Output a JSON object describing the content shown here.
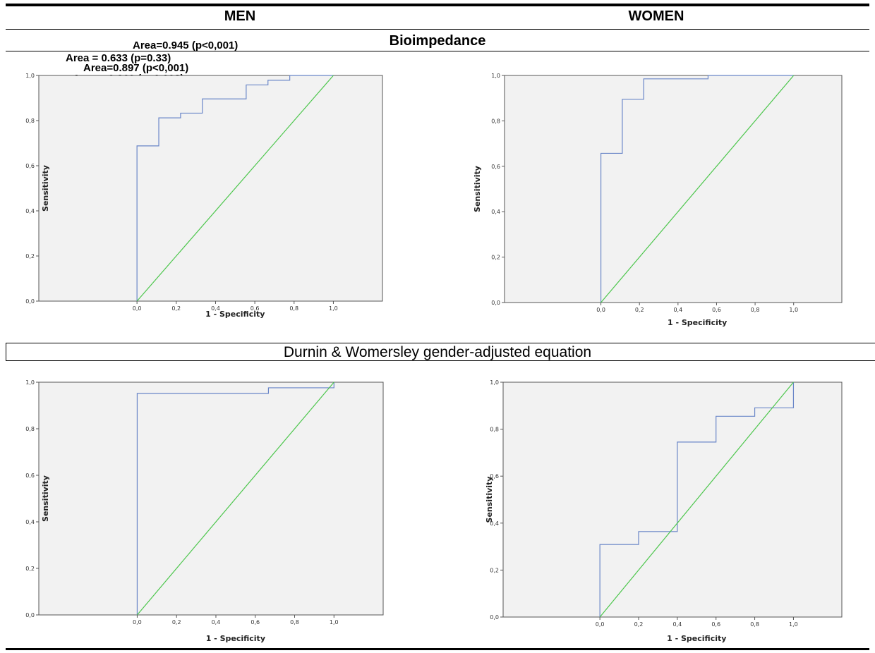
{
  "header": {
    "men": "MEN",
    "women": "WOMEN"
  },
  "sections": [
    {
      "title": "Bioimpedance",
      "bold": true
    },
    {
      "title": "Durnin & Womersley gender-adjusted equation",
      "bold": false
    }
  ],
  "area_labels": [
    "Area=0.945 (p<0,001)",
    "Area = 0.633  (p=0.33)",
    "Area=0.897 (p<0,001)",
    "Area = 0.960  (p=0.008)"
  ],
  "colors": {
    "roc": "#6a86c8",
    "reference": "#4cc64c",
    "plot_bg": "#f2f2f2",
    "axis": "#555555"
  },
  "chart_data": [
    {
      "type": "line",
      "panel": "men-bioimpedance",
      "xlabel": "1 - Specificity",
      "ylabel": "Sensitivity",
      "xlim": [
        -0.5,
        1.25
      ],
      "ylim": [
        0,
        1
      ],
      "xticks": [
        "0,0",
        "0,2",
        "0,4",
        "0,6",
        "0,8",
        "1,0"
      ],
      "yticks": [
        "0,0",
        "0,2",
        "0,4",
        "0,6",
        "0,8",
        "1,0"
      ],
      "series": [
        {
          "x": [
            0,
            0,
            0.111,
            0.111,
            0.222,
            0.222,
            0.333,
            0.333,
            0.556,
            0.556,
            0.667,
            0.667,
            0.778,
            0.778,
            1.0
          ],
          "y": [
            0,
            0.688,
            0.688,
            0.812,
            0.812,
            0.833,
            0.833,
            0.896,
            0.896,
            0.958,
            0.958,
            0.979,
            0.979,
            1.0,
            1.0
          ]
        },
        {
          "x": [
            0,
            1
          ],
          "y": [
            0,
            1
          ]
        }
      ]
    },
    {
      "type": "line",
      "panel": "women-bioimpedance",
      "xlabel": "1 - Specificity",
      "ylabel": "Sensitivity",
      "xlim": [
        -0.5,
        1.25
      ],
      "ylim": [
        0,
        1
      ],
      "xticks": [
        "0,0",
        "0,2",
        "0,4",
        "0,6",
        "0,8",
        "1,0"
      ],
      "yticks": [
        "0,0",
        "0,2",
        "0,4",
        "0,6",
        "0,8",
        "1,0"
      ],
      "series": [
        {
          "x": [
            0,
            0,
            0.111,
            0.111,
            0.222,
            0.222,
            0.556,
            0.556,
            1.0
          ],
          "y": [
            0,
            0.657,
            0.657,
            0.895,
            0.895,
            0.985,
            0.985,
            1.0,
            1.0
          ]
        },
        {
          "x": [
            0,
            1
          ],
          "y": [
            0,
            1
          ]
        }
      ]
    },
    {
      "type": "line",
      "panel": "men-durnin",
      "xlabel": "1 - Specificity",
      "ylabel": "Sensitivity",
      "xlim": [
        -0.5,
        1.25
      ],
      "ylim": [
        0,
        1
      ],
      "xticks": [
        "0,0",
        "0,2",
        "0,4",
        "0,6",
        "0,8",
        "1,0"
      ],
      "yticks": [
        "0,0",
        "0,2",
        "0,4",
        "0,6",
        "0,8",
        "1,0"
      ],
      "series": [
        {
          "x": [
            0,
            0,
            0.667,
            0.667,
            1.0,
            1.0
          ],
          "y": [
            0,
            0.952,
            0.952,
            0.976,
            0.976,
            1.0
          ]
        },
        {
          "x": [
            0,
            1
          ],
          "y": [
            0,
            1
          ]
        }
      ]
    },
    {
      "type": "line",
      "panel": "women-durnin",
      "xlabel": "1 - Specificity",
      "ylabel": "Sensitivity",
      "xlim": [
        -0.5,
        1.25
      ],
      "ylim": [
        0,
        1
      ],
      "xticks": [
        "0,0",
        "0,2",
        "0,4",
        "0,6",
        "0,8",
        "1,0"
      ],
      "yticks": [
        "0,0",
        "0,2",
        "0,4",
        "0,6",
        "0,8",
        "1,0"
      ],
      "series": [
        {
          "x": [
            0,
            0,
            0.2,
            0.2,
            0.4,
            0.4,
            0.6,
            0.6,
            0.8,
            0.8,
            1.0,
            1.0
          ],
          "y": [
            0,
            0.309,
            0.309,
            0.364,
            0.364,
            0.745,
            0.745,
            0.855,
            0.855,
            0.891,
            0.891,
            1.0
          ]
        },
        {
          "x": [
            0,
            1
          ],
          "y": [
            0,
            1
          ]
        }
      ]
    }
  ]
}
